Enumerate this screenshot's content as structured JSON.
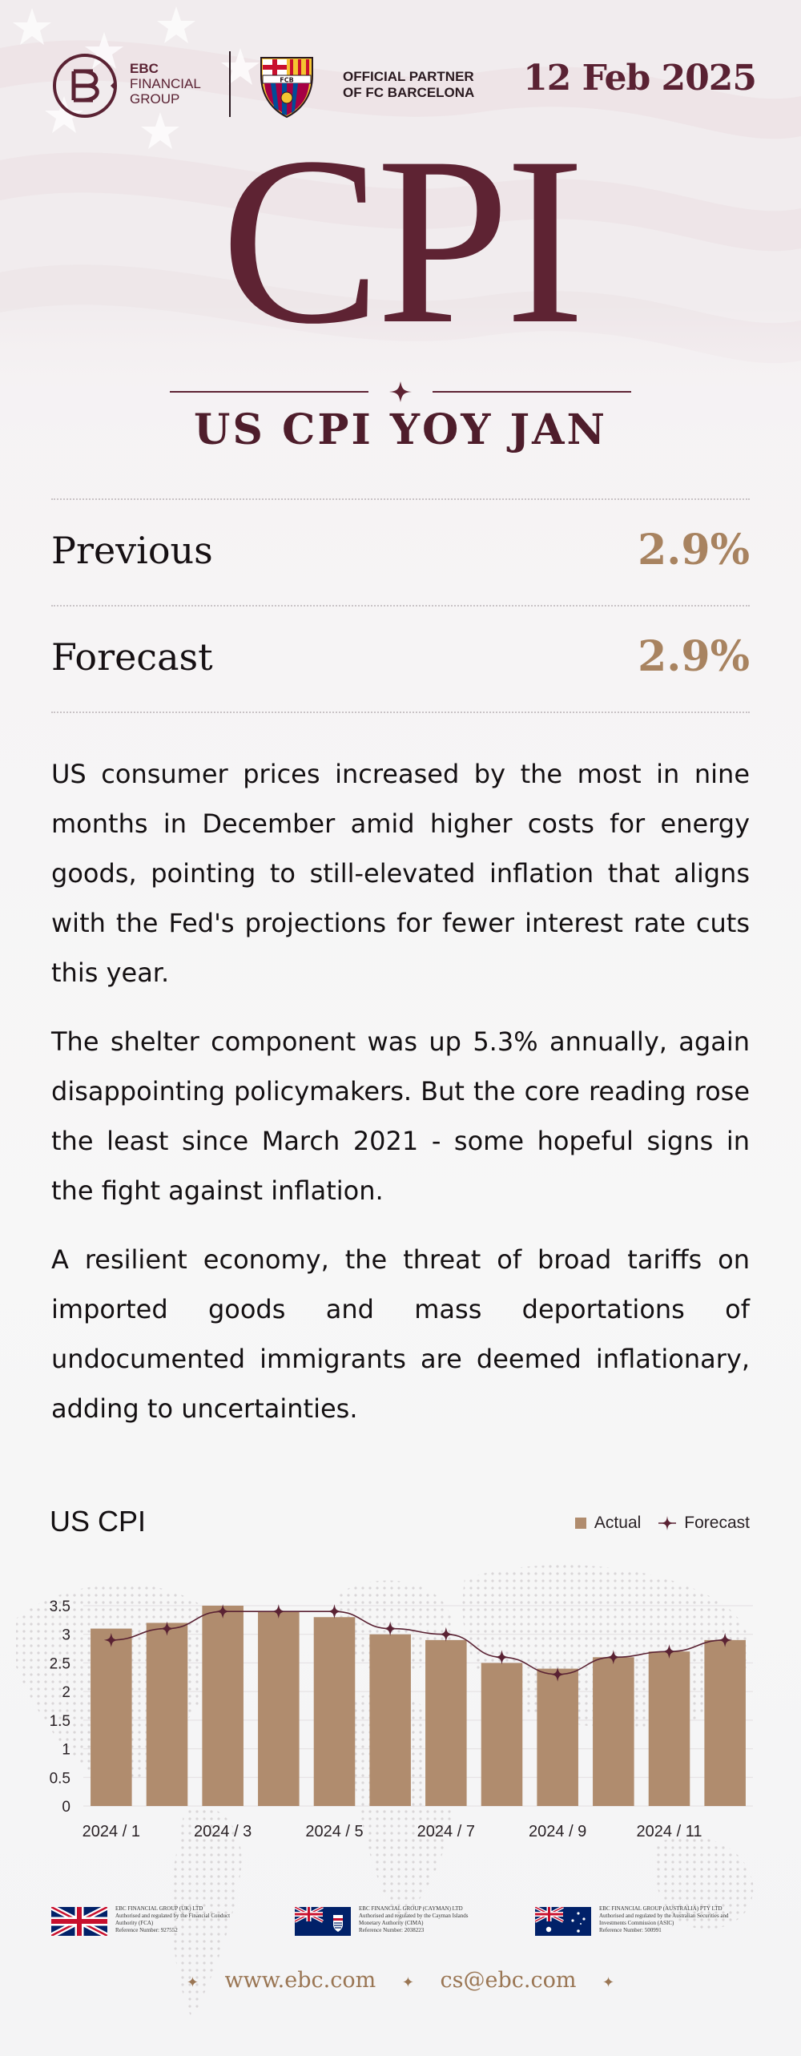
{
  "header": {
    "brand_line1": "EBC",
    "brand_line2": "FINANCIAL",
    "brand_line3": "GROUP",
    "partner_line1": "OFFICIAL PARTNER",
    "partner_line2": "OF FC BARCELONA",
    "crest_text": "FCB",
    "date": "12 Feb 2025"
  },
  "title": "CPI",
  "subtitle": "US CPI YOY JAN",
  "stats": [
    {
      "label": "Previous",
      "value": "2.9%"
    },
    {
      "label": "Forecast",
      "value": "2.9%"
    }
  ],
  "paragraphs": [
    "US consumer prices increased by the most in nine months in December amid higher costs for energy goods, pointing to still-elevated inflation that aligns with the Fed's projections for fewer interest rate cuts this year.",
    "The shelter component was up 5.3% annually, again disappointing policymakers. But the core reading rose the least since March 2021 - some hopeful signs in the fight against inflation.",
    "A resilient economy, the threat of broad tariffs on imported goods and mass deportations of undocumented immigrants are deemed inflationary, adding to uncertainties."
  ],
  "colors": {
    "brand": "#5e2333",
    "accent": "#a88360",
    "bar": "#b08c6e",
    "line": "#5a2233"
  },
  "chart_data": {
    "type": "bar",
    "title": "US CPI",
    "categories": [
      "2024 / 1",
      "2024 / 2",
      "2024 / 3",
      "2024 / 4",
      "2024 / 5",
      "2024 / 6",
      "2024 / 7",
      "2024 / 8",
      "2024 / 9",
      "2024 / 10",
      "2024 / 11",
      "2024 / 12"
    ],
    "x_tick_labels": [
      "2024 / 1",
      "2024 / 3",
      "2024 / 5",
      "2024 / 7",
      "2024 / 9",
      "2024 / 11"
    ],
    "series": [
      {
        "name": "Actual",
        "kind": "bar",
        "values": [
          3.1,
          3.2,
          3.5,
          3.4,
          3.3,
          3.0,
          2.9,
          2.5,
          2.4,
          2.6,
          2.7,
          2.9
        ]
      },
      {
        "name": "Forecast",
        "kind": "line",
        "values": [
          2.9,
          3.1,
          3.4,
          3.4,
          3.4,
          3.1,
          3.0,
          2.6,
          2.3,
          2.6,
          2.7,
          2.9
        ]
      }
    ],
    "y_ticks": [
      "0",
      "0.5",
      "1",
      "1.5",
      "2",
      "2.5",
      "3",
      "3.5"
    ],
    "ylim": [
      0,
      3.5
    ],
    "grid": true,
    "legend_position": "top-right"
  },
  "regulators": [
    {
      "flag": "uk-flag-icon",
      "lines": [
        "EBC FINANCIAL GROUP (UK) LTD",
        "Authorised and regulated by the Financial Conduct",
        "Authority (FCA)",
        "Reference Number: 927552"
      ]
    },
    {
      "flag": "cayman-flag-icon",
      "lines": [
        "EBC FINANCIAL GROUP (CAYMAN) LTD",
        "Authorised and regulated by the Cayman Islands",
        "Monetary Authority (CIMA)",
        "Reference Number: 2038223"
      ]
    },
    {
      "flag": "australia-flag-icon",
      "lines": [
        "EBC FINANCIAL GROUP (AUSTRALIA) PTY LTD",
        "Authorised and regulated by the Australian Securities and",
        "Investments Commission (ASIC)",
        "Reference Number: 500991"
      ]
    }
  ],
  "contact": {
    "website": "www.ebc.com",
    "email": "cs@ebc.com"
  }
}
